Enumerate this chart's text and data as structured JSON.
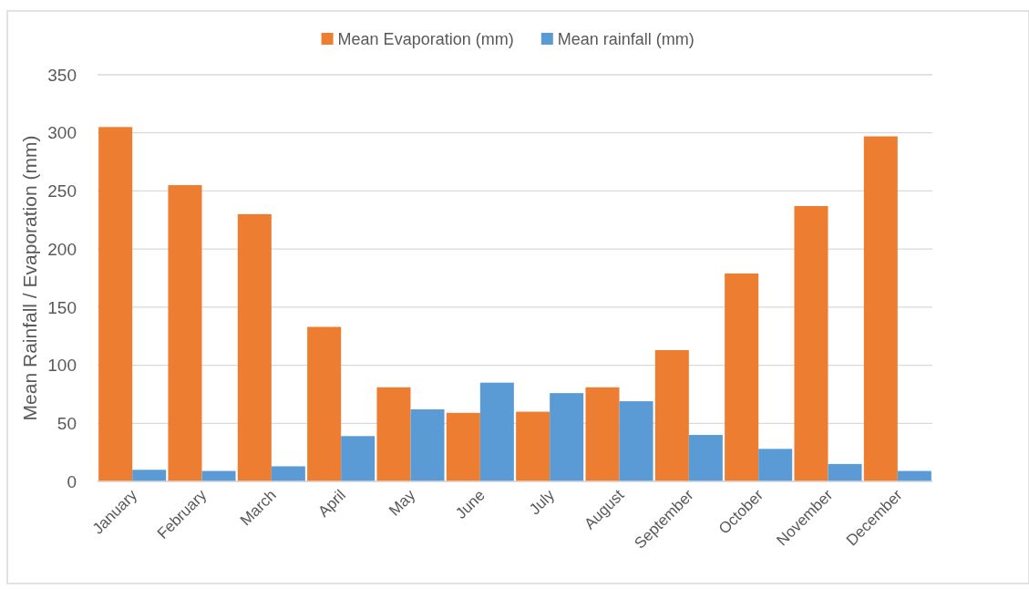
{
  "chart_data": {
    "type": "bar",
    "ylabel": "Mean Rainfall / Evaporation (mm)",
    "categories": [
      "January",
      "February",
      "March",
      "April",
      "May",
      "June",
      "July",
      "August",
      "September",
      "October",
      "November",
      "December"
    ],
    "series": [
      {
        "name": "Mean Evaporation (mm)",
        "color": "#ed7d31",
        "values": [
          305,
          255,
          230,
          133,
          81,
          59,
          60,
          81,
          113,
          179,
          237,
          297
        ]
      },
      {
        "name": "Mean rainfall (mm)",
        "color": "#5b9bd5",
        "values": [
          10,
          9,
          13,
          39,
          62,
          85,
          76,
          69,
          40,
          28,
          15,
          9
        ]
      }
    ],
    "ylim": [
      0,
      350
    ],
    "yticks": [
      0,
      50,
      100,
      150,
      200,
      250,
      300,
      350
    ],
    "grid": "y",
    "legend": "top"
  }
}
